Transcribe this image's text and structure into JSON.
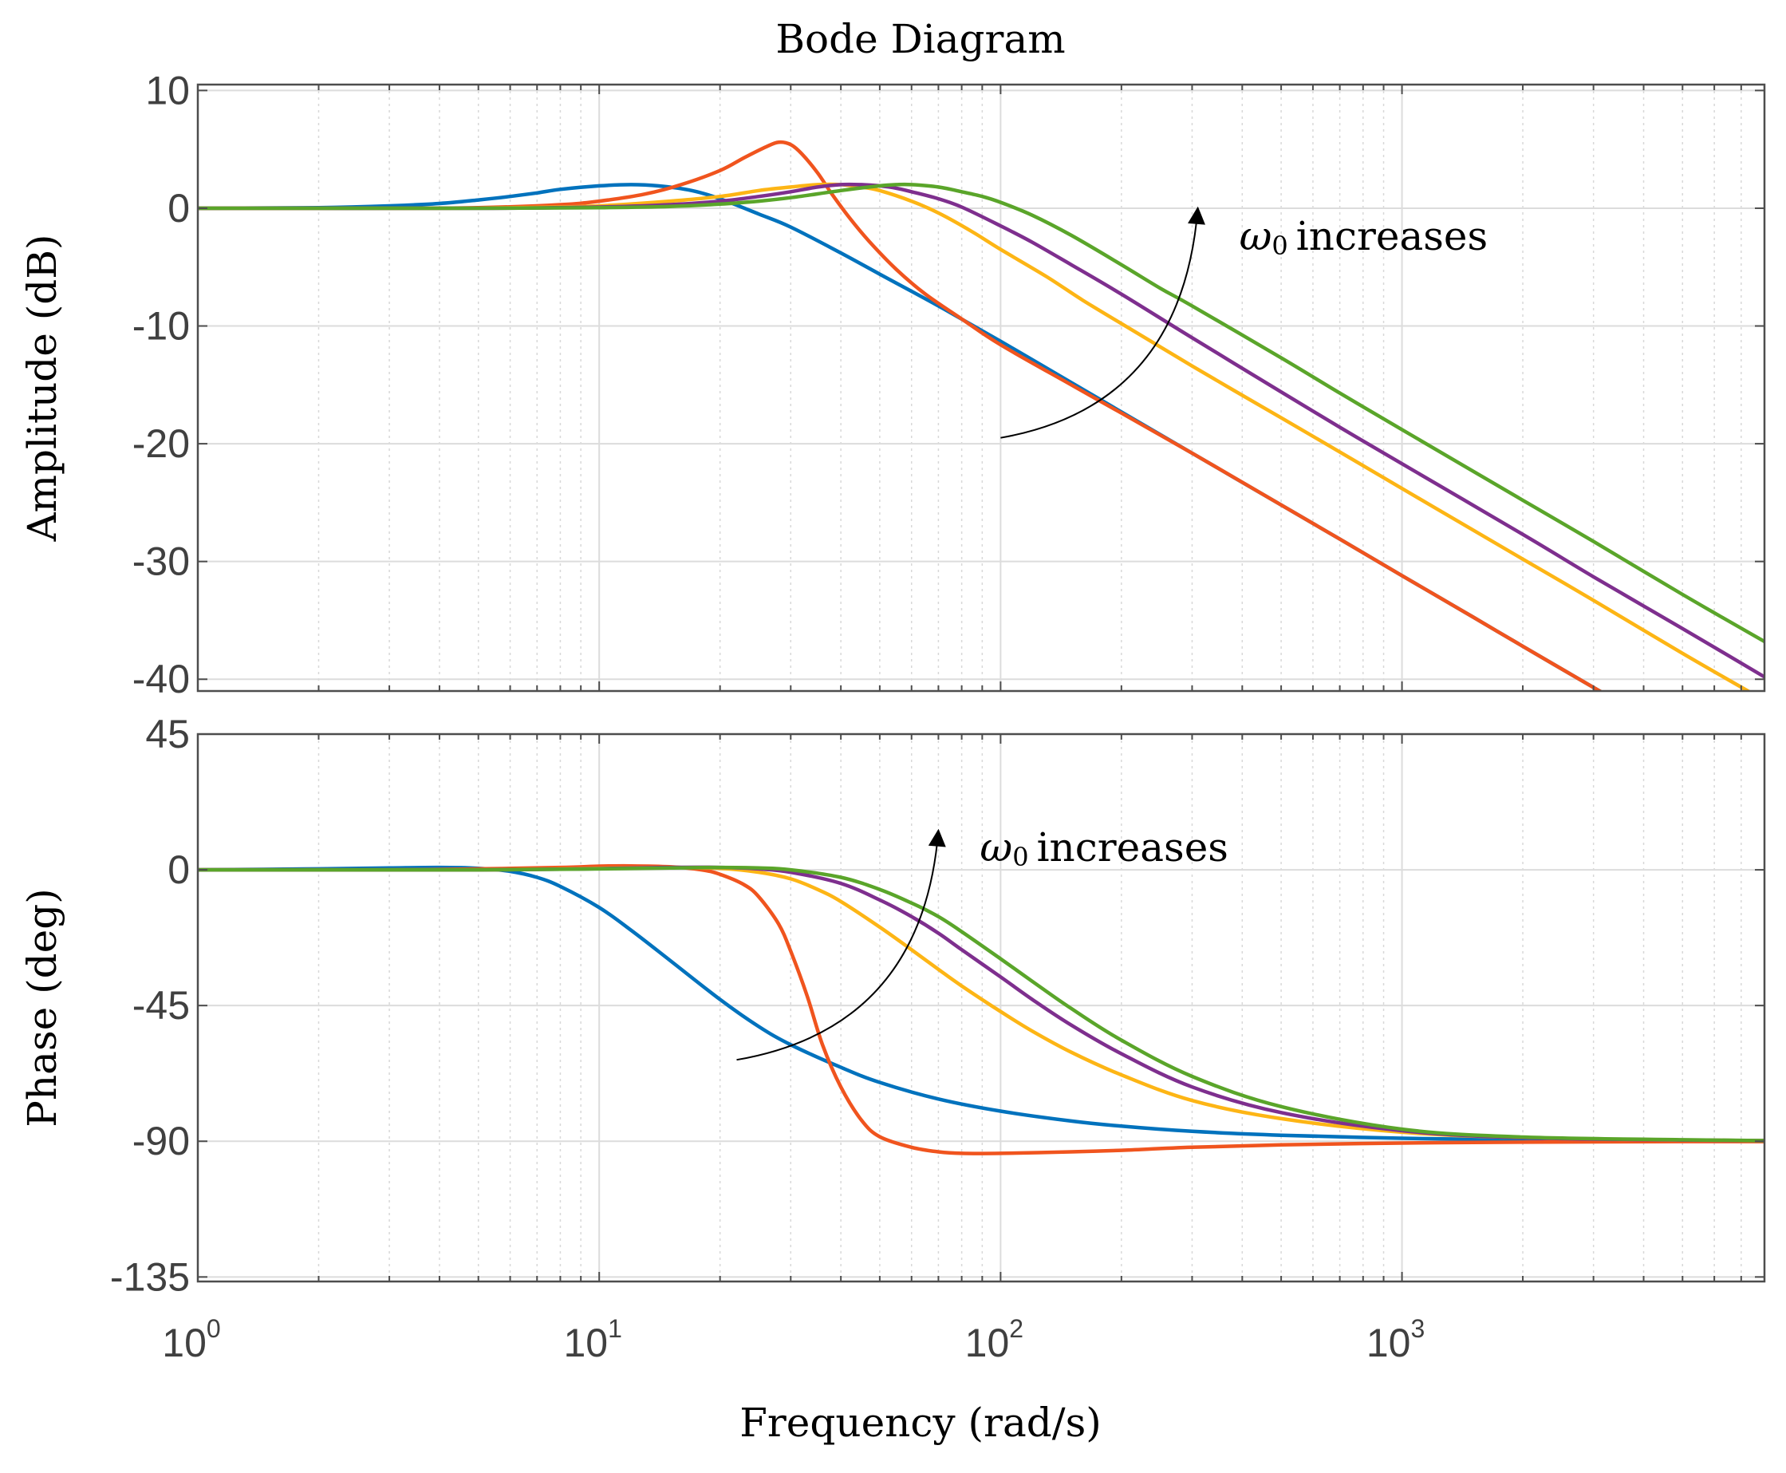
{
  "chart_data": {
    "type": "line",
    "title": "Bode Diagram",
    "xlabel": "Frequency (rad/s)",
    "x_scale": "log",
    "xlim": [
      1,
      8000
    ],
    "x_ticks": [
      {
        "value": 1,
        "base": "10",
        "exp": "0"
      },
      {
        "value": 10,
        "base": "10",
        "exp": "1"
      },
      {
        "value": 100,
        "base": "10",
        "exp": "2"
      },
      {
        "value": 1000,
        "base": "10",
        "exp": "3"
      }
    ],
    "grid": true,
    "series_colors": {
      "blue": "#0072BD",
      "red": "#F0541E",
      "yellow": "#FDB515",
      "purple": "#7E2F8E",
      "green": "#5AA52A"
    },
    "panels": [
      {
        "id": "amplitude",
        "ylabel": "Amplitude (dB)",
        "ylim": [
          -41,
          10.5
        ],
        "yticks": [
          10,
          0,
          -10,
          -20,
          -30,
          -40
        ],
        "ytick_labels": [
          "10",
          "0",
          "-10",
          "-20",
          "-30",
          "-40"
        ],
        "annotation": {
          "symbol": "ω",
          "subscript": "0",
          "text": "increases",
          "arrow_from": [
            100,
            -19.5
          ],
          "arrow_to": [
            310,
            0
          ]
        },
        "series": [
          {
            "name": "blue",
            "color": "#0072BD",
            "x": [
              1,
              2,
              3,
              4,
              5,
              6,
              7,
              8,
              10,
              12,
              14,
              17,
              20,
              25,
              30,
              40,
              50,
              70,
              100,
              150,
              200,
              300,
              500,
              700,
              1000,
              1500,
              2000,
              3000,
              3300
            ],
            "y": [
              0,
              0.05,
              0.2,
              0.4,
              0.7,
              1.0,
              1.3,
              1.6,
              1.9,
              2.0,
              1.9,
              1.5,
              0.8,
              -0.5,
              -1.6,
              -3.8,
              -5.6,
              -8.3,
              -11.3,
              -14.8,
              -17.3,
              -20.8,
              -25.2,
              -28.1,
              -31.2,
              -34.7,
              -37.2,
              -40.7,
              -41.5
            ]
          },
          {
            "name": "red",
            "color": "#F0541E",
            "x": [
              1,
              3,
              5,
              8,
              10,
              13,
              16,
              20,
              23,
              26,
              28,
              30,
              32,
              35,
              38,
              42,
              47,
              55,
              65,
              80,
              100,
              150,
              200,
              300,
              500,
              700,
              1000,
              1500,
              2000,
              3000,
              3300
            ],
            "y": [
              0,
              0,
              0.05,
              0.3,
              0.6,
              1.2,
              2.0,
              3.2,
              4.3,
              5.2,
              5.6,
              5.4,
              4.6,
              3.0,
              1.2,
              -0.8,
              -2.8,
              -5.2,
              -7.3,
              -9.4,
              -11.6,
              -15.0,
              -17.4,
              -20.8,
              -25.2,
              -28.1,
              -31.2,
              -34.7,
              -37.2,
              -40.7,
              -41.5
            ]
          },
          {
            "name": "yellow",
            "color": "#FDB515",
            "x": [
              1,
              3,
              5,
              8,
              10,
              15,
              20,
              25,
              30,
              35,
              40,
              45,
              50,
              60,
              70,
              85,
              100,
              130,
              160,
              200,
              300,
              500,
              700,
              1000,
              2000,
              3000,
              5000,
              8000
            ],
            "y": [
              0,
              0,
              0.02,
              0.1,
              0.2,
              0.6,
              1.0,
              1.5,
              1.8,
              2.0,
              2.0,
              1.8,
              1.5,
              0.6,
              -0.4,
              -2.0,
              -3.5,
              -5.8,
              -7.8,
              -9.8,
              -13.4,
              -17.8,
              -20.7,
              -23.8,
              -29.8,
              -33.3,
              -37.8,
              -41.8
            ]
          },
          {
            "name": "purple",
            "color": "#7E2F8E",
            "x": [
              1,
              5,
              10,
              15,
              20,
              25,
              30,
              35,
              40,
              45,
              50,
              55,
              60,
              70,
              80,
              100,
              120,
              150,
              200,
              300,
              500,
              700,
              1000,
              2000,
              3000,
              5000,
              8000
            ],
            "y": [
              0,
              0,
              0.1,
              0.3,
              0.6,
              1.0,
              1.4,
              1.8,
              2.0,
              2.0,
              1.9,
              1.7,
              1.4,
              0.8,
              0.1,
              -1.5,
              -2.9,
              -4.8,
              -7.3,
              -11.0,
              -15.6,
              -18.6,
              -21.7,
              -27.7,
              -31.3,
              -35.7,
              -39.8
            ]
          },
          {
            "name": "green",
            "color": "#5AA52A",
            "x": [
              1,
              5,
              10,
              15,
              20,
              25,
              30,
              40,
              50,
              55,
              60,
              70,
              80,
              90,
              100,
              120,
              150,
              200,
              250,
              300,
              500,
              700,
              1000,
              2000,
              3000,
              5000,
              8000
            ],
            "y": [
              0,
              0,
              0.05,
              0.15,
              0.35,
              0.6,
              0.9,
              1.5,
              1.9,
              2.0,
              2.0,
              1.8,
              1.4,
              1.0,
              0.5,
              -0.6,
              -2.3,
              -4.8,
              -6.8,
              -8.3,
              -12.7,
              -15.7,
              -18.8,
              -24.8,
              -28.3,
              -32.8,
              -36.8
            ]
          }
        ]
      },
      {
        "id": "phase",
        "ylabel": "Phase (deg)",
        "ylim": [
          -136.5,
          45
        ],
        "yticks": [
          45,
          0,
          -45,
          -90,
          -135
        ],
        "ytick_labels": [
          "45",
          "0",
          "-45",
          "-90",
          "-135"
        ],
        "annotation": {
          "symbol": "ω",
          "subscript": "0",
          "text": "increases",
          "arrow_from": [
            22,
            -63
          ],
          "arrow_to": [
            70,
            13
          ]
        },
        "series": [
          {
            "name": "blue",
            "color": "#0072BD",
            "x": [
              1,
              2,
              3,
              4,
              5,
              6,
              7,
              8,
              10,
              12,
              15,
              20,
              25,
              30,
              40,
              50,
              70,
              100,
              150,
              200,
              300,
              500,
              1000,
              2000,
              5000,
              8000
            ],
            "y": [
              0,
              0.3,
              0.6,
              0.8,
              0.5,
              -0.5,
              -2.5,
              -5.5,
              -12.5,
              -20.0,
              -30.0,
              -43.0,
              -52.0,
              -58.0,
              -65.5,
              -70.5,
              -76.0,
              -80.0,
              -83.3,
              -85.0,
              -86.7,
              -88.0,
              -89.0,
              -89.5,
              -89.8,
              -89.9
            ]
          },
          {
            "name": "red",
            "color": "#F0541E",
            "x": [
              1,
              3,
              5,
              8,
              10,
              12,
              15,
              18,
              20,
              23,
              25,
              28,
              30,
              33,
              36,
              40,
              45,
              50,
              60,
              70,
              80,
              100,
              150,
              200,
              300,
              500,
              1000,
              2000,
              5000,
              8000
            ],
            "y": [
              0,
              0,
              0.3,
              0.8,
              1.2,
              1.3,
              1.0,
              0,
              -1.5,
              -5.0,
              -9.0,
              -18.0,
              -27.0,
              -42.0,
              -58.0,
              -72.0,
              -83.0,
              -88.5,
              -92.0,
              -93.5,
              -94.0,
              -94.0,
              -93.5,
              -93.0,
              -92.0,
              -91.2,
              -90.6,
              -90.3,
              -90.1,
              -90.1
            ]
          },
          {
            "name": "yellow",
            "color": "#FDB515",
            "x": [
              1,
              5,
              10,
              15,
              20,
              25,
              30,
              35,
              40,
              50,
              60,
              70,
              80,
              100,
              120,
              150,
              200,
              300,
              500,
              1000,
              2000,
              5000,
              8000
            ],
            "y": [
              0,
              0,
              0.5,
              0.8,
              0.5,
              -0.8,
              -3.0,
              -6.5,
              -10.5,
              -19.0,
              -26.5,
              -33.0,
              -38.5,
              -47.0,
              -53.5,
              -60.5,
              -68.0,
              -76.5,
              -82.5,
              -87.0,
              -88.8,
              -89.6,
              -89.8
            ]
          },
          {
            "name": "purple",
            "color": "#7E2F8E",
            "x": [
              1,
              5,
              10,
              15,
              20,
              25,
              30,
              40,
              50,
              60,
              70,
              80,
              100,
              120,
              150,
              200,
              300,
              500,
              1000,
              2000,
              5000,
              8000
            ],
            "y": [
              0,
              0,
              0.4,
              0.8,
              0.8,
              0.3,
              -0.8,
              -4.5,
              -10.0,
              -15.5,
              -21.0,
              -26.5,
              -35.5,
              -43.0,
              -51.5,
              -61.0,
              -72.0,
              -80.5,
              -86.5,
              -88.8,
              -89.6,
              -89.8
            ]
          },
          {
            "name": "green",
            "color": "#5AA52A",
            "x": [
              1,
              5,
              10,
              15,
              20,
              25,
              30,
              40,
              50,
              60,
              70,
              80,
              100,
              120,
              150,
              200,
              300,
              500,
              1000,
              2000,
              5000,
              8000
            ],
            "y": [
              0,
              0,
              0.3,
              0.6,
              0.8,
              0.6,
              0,
              -2.5,
              -6.5,
              -11.0,
              -15.5,
              -20.5,
              -29.5,
              -37.0,
              -46.0,
              -56.5,
              -68.5,
              -78.5,
              -86.0,
              -88.6,
              -89.5,
              -89.8
            ]
          }
        ]
      }
    ]
  }
}
